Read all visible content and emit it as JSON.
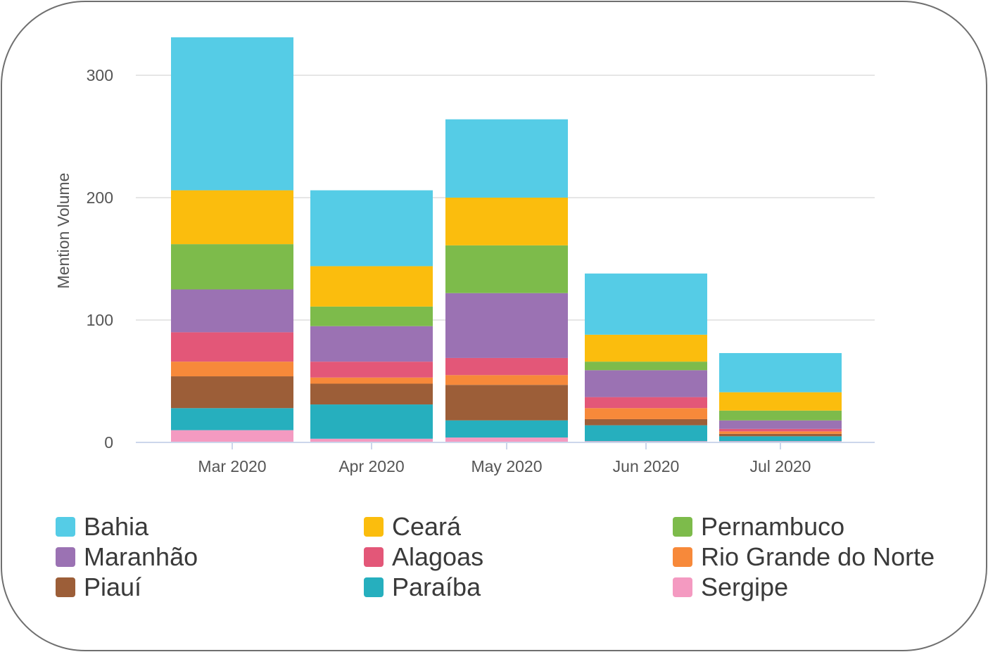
{
  "chart_data": {
    "type": "bar",
    "stacked": true,
    "categories": [
      "Mar 2020",
      "Apr 2020",
      "May 2020",
      "Jun 2020",
      "Jul 2020"
    ],
    "ylabel": "Mention Volume",
    "xlabel": "",
    "ylim": [
      0,
      330
    ],
    "yticks": [
      0,
      100,
      200,
      300
    ],
    "grid": true,
    "legend_position": "bottom",
    "series": [
      {
        "name": "Sergipe",
        "color": "#F49AC1",
        "values": [
          10,
          3,
          4,
          1,
          1
        ]
      },
      {
        "name": "Paraíba",
        "color": "#26AFBE",
        "values": [
          18,
          28,
          14,
          13,
          4
        ]
      },
      {
        "name": "Piauí",
        "color": "#9C5E38",
        "values": [
          26,
          17,
          29,
          5,
          2
        ]
      },
      {
        "name": "Rio Grande do Norte",
        "color": "#F7893A",
        "values": [
          12,
          5,
          8,
          9,
          2
        ]
      },
      {
        "name": "Alagoas",
        "color": "#E35778",
        "values": [
          24,
          13,
          14,
          9,
          2
        ]
      },
      {
        "name": "Maranhão",
        "color": "#9B72B3",
        "values": [
          35,
          29,
          53,
          22,
          7
        ]
      },
      {
        "name": "Pernambuco",
        "color": "#7DBB4B",
        "values": [
          37,
          16,
          39,
          7,
          8
        ]
      },
      {
        "name": "Ceará",
        "color": "#FBBD0D",
        "values": [
          44,
          33,
          39,
          22,
          15
        ]
      },
      {
        "name": "Bahia",
        "color": "#55CCE6",
        "values": [
          125,
          62,
          64,
          50,
          32
        ]
      }
    ]
  },
  "legend": [
    {
      "label": "Bahia",
      "color": "#55CCE6"
    },
    {
      "label": "Ceará",
      "color": "#FBBD0D"
    },
    {
      "label": "Pernambuco",
      "color": "#7DBB4B"
    },
    {
      "label": "Maranhão",
      "color": "#9B72B3"
    },
    {
      "label": "Alagoas",
      "color": "#E35778"
    },
    {
      "label": "Rio Grande do Norte",
      "color": "#F7893A"
    },
    {
      "label": "Piauí",
      "color": "#9C5E38"
    },
    {
      "label": "Paraíba",
      "color": "#26AFBE"
    },
    {
      "label": "Sergipe",
      "color": "#F49AC1"
    }
  ]
}
